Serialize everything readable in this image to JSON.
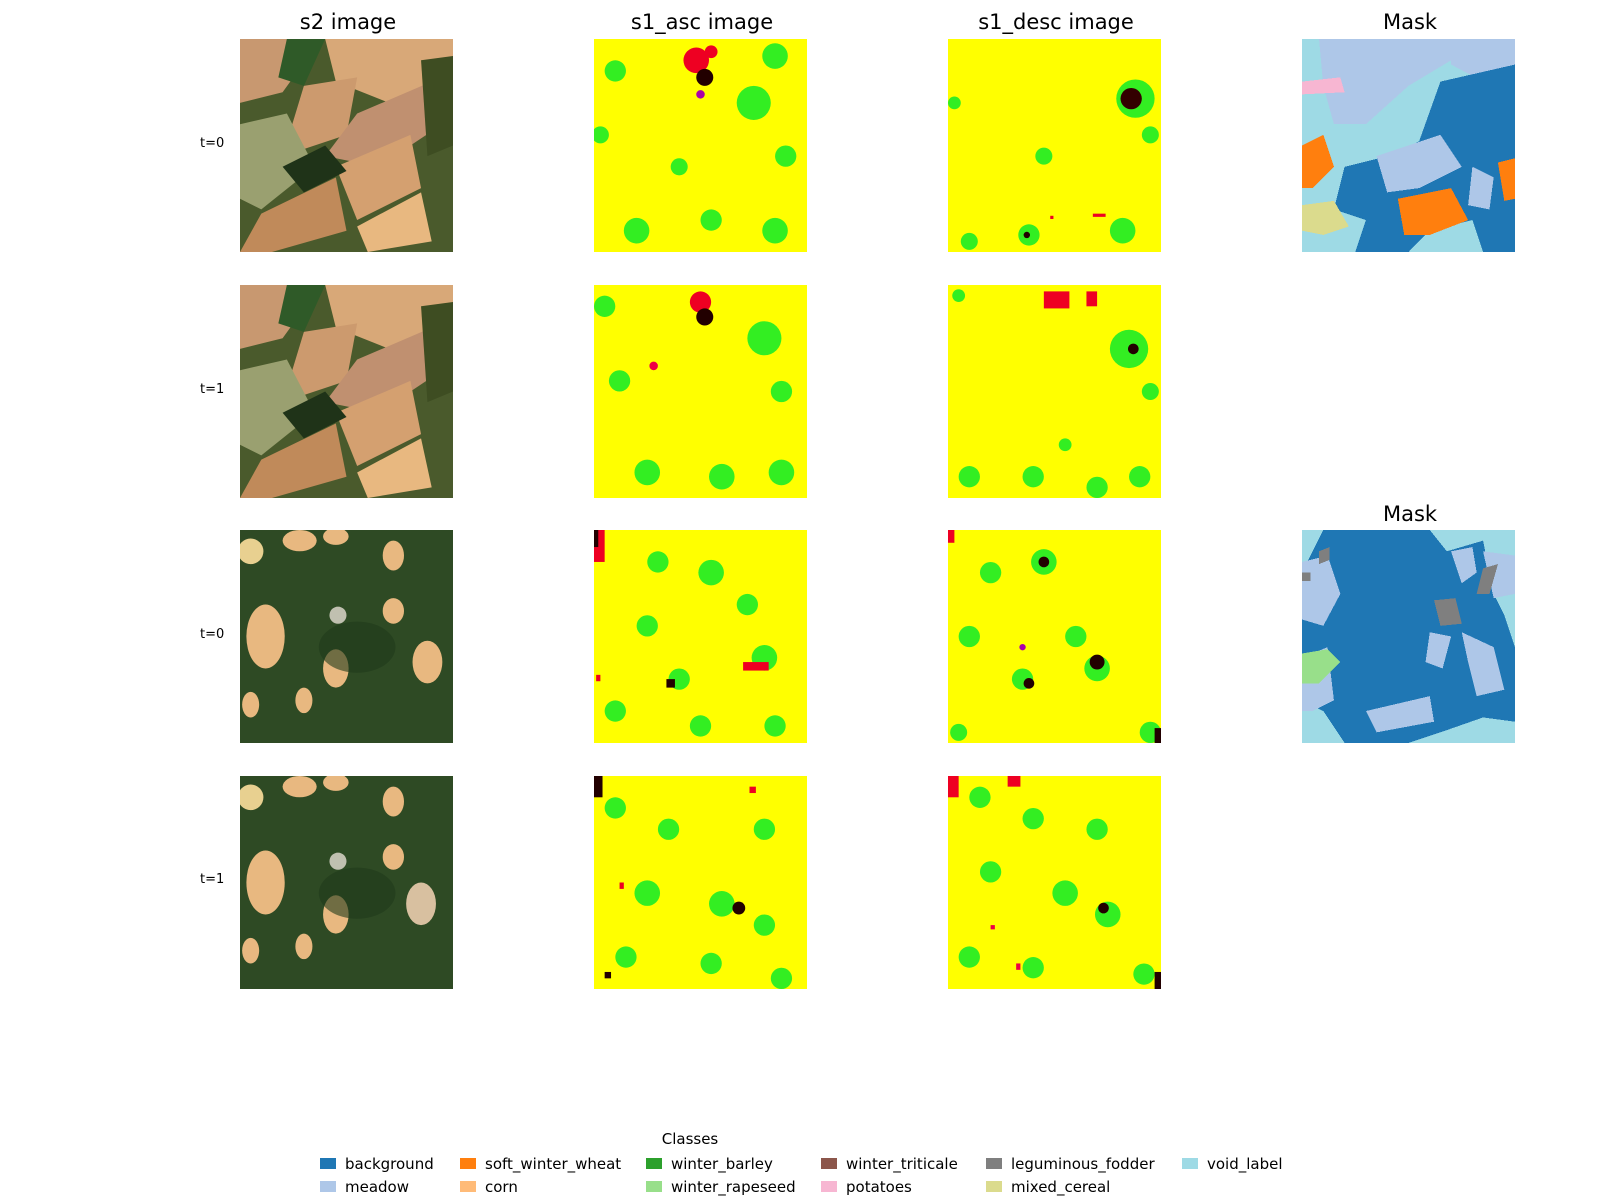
{
  "columns": [
    {
      "title": "s2 image"
    },
    {
      "title": "s1_asc image"
    },
    {
      "title": "s1_desc image"
    },
    {
      "title": "Mask"
    }
  ],
  "second_mask_title": "Mask",
  "rows": [
    {
      "label": "t=0"
    },
    {
      "label": "t=1"
    },
    {
      "label": "t=0"
    },
    {
      "label": "t=1"
    }
  ],
  "legend": {
    "title": "Classes",
    "items": [
      {
        "label": "background",
        "color": "#1f77b4"
      },
      {
        "label": "meadow",
        "color": "#aec7e8"
      },
      {
        "label": "soft_winter_wheat",
        "color": "#ff7f0e"
      },
      {
        "label": "corn",
        "color": "#ffbb78"
      },
      {
        "label": "winter_barley",
        "color": "#2ca02c"
      },
      {
        "label": "winter_rapeseed",
        "color": "#98df8a"
      },
      {
        "label": "winter_triticale",
        "color": "#8c564b"
      },
      {
        "label": "potatoes",
        "color": "#f7b6d2"
      },
      {
        "label": "leguminous_fodder",
        "color": "#7f7f7f"
      },
      {
        "label": "mixed_cereal",
        "color": "#dbdb8d"
      },
      {
        "label": "void_label",
        "color": "#9edae5"
      }
    ]
  }
}
